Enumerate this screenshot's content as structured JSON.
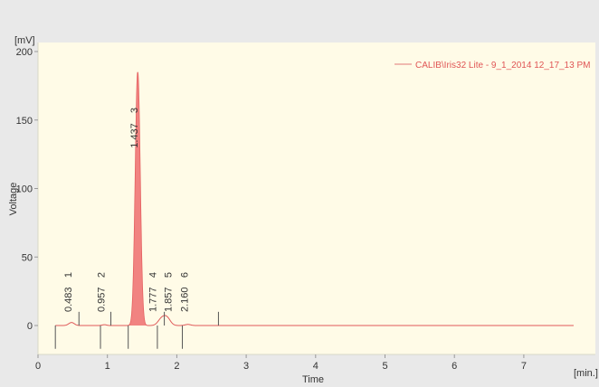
{
  "chart_data": {
    "type": "line",
    "title": "",
    "xlabel": "Time",
    "ylabel": "Voltage",
    "y_unit": "[mV]",
    "x_unit": "[min.]",
    "xlim": [
      0,
      7.9
    ],
    "ylim": [
      -15,
      205
    ],
    "x_ticks": [
      0,
      1,
      2,
      3,
      4,
      5,
      6,
      7
    ],
    "y_ticks": [
      0,
      50,
      100,
      150,
      200
    ],
    "grid": false,
    "legend_position": "top-right",
    "series": [
      {
        "name": "CALIB\\Iris32 Lite - 9_1_2014 12_17_13 PM",
        "color": "#e05a5a",
        "fill_color": "#f07575",
        "baseline": 0,
        "end_time": 7.72,
        "peaks": [
          {
            "number": "1",
            "time": "0.483",
            "rt": 0.483,
            "height": 2.2,
            "width": 0.04
          },
          {
            "number": "2",
            "time": "0.957",
            "rt": 0.957,
            "height": 0.6,
            "width": 0.03
          },
          {
            "number": "3",
            "time": "1.437",
            "rt": 1.437,
            "height": 185,
            "width": 0.035
          },
          {
            "number": "4",
            "time": "1.777",
            "rt": 1.777,
            "height": 4.5,
            "width": 0.05
          },
          {
            "number": "5",
            "time": "1.857",
            "rt": 1.857,
            "height": 5.5,
            "width": 0.05
          },
          {
            "number": "6",
            "time": "2.160",
            "rt": 2.16,
            "height": 0.8,
            "width": 0.04
          }
        ],
        "integration_markers": [
          {
            "time": 0.25,
            "low": -17,
            "high": 0
          },
          {
            "time": 0.59,
            "low": 0,
            "high": 10
          },
          {
            "time": 0.9,
            "low": -17,
            "high": 0
          },
          {
            "time": 1.05,
            "low": 0,
            "high": 10
          },
          {
            "time": 1.3,
            "low": -17,
            "high": 0
          },
          {
            "time": 1.72,
            "low": -17,
            "high": 0
          },
          {
            "time": 1.82,
            "low": 0,
            "high": 10
          },
          {
            "time": 2.08,
            "low": -17,
            "high": 0
          },
          {
            "time": 2.6,
            "low": 0,
            "high": 10
          }
        ]
      }
    ]
  }
}
